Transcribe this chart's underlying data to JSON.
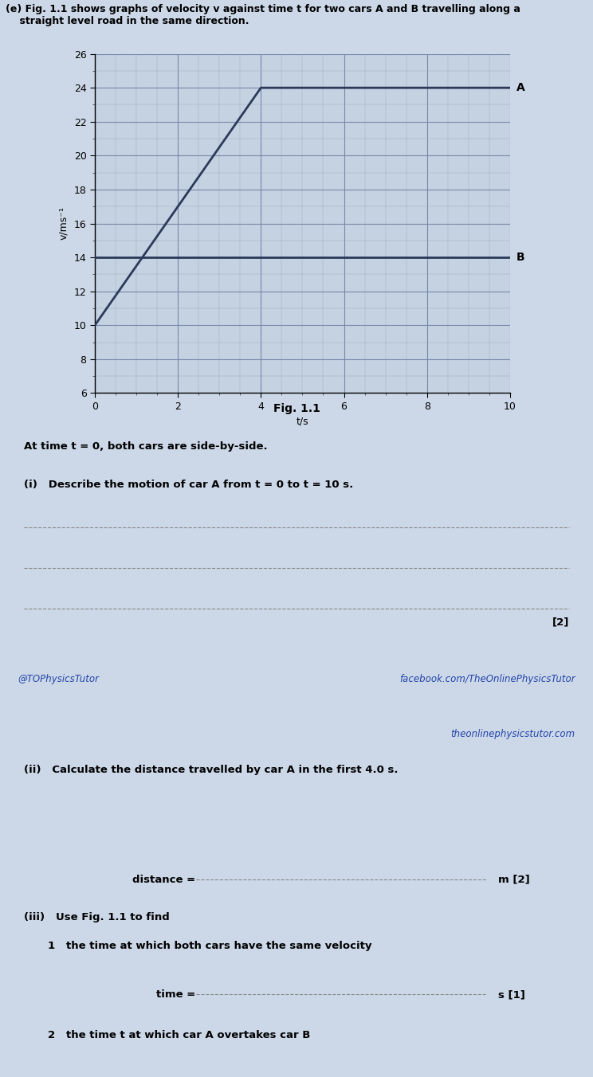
{
  "header_text_line1": "(e) Fig. 1.1 shows graphs of velocity v against time t for two cars A and B travelling along a",
  "header_text_line2": "    straight level road in the same direction.",
  "fig_label": "Fig. 1.1",
  "ylabel": "v/ms⁻¹",
  "xlabel": "t/s",
  "ylim": [
    6,
    26
  ],
  "xlim": [
    0,
    10
  ],
  "yticks": [
    6,
    8,
    10,
    12,
    14,
    16,
    18,
    20,
    22,
    24,
    26
  ],
  "xticks": [
    0,
    2,
    4,
    6,
    8,
    10
  ],
  "car_A_t": [
    0,
    4,
    10
  ],
  "car_A_v": [
    10,
    24,
    24
  ],
  "car_B_t": [
    0,
    10
  ],
  "car_B_v": [
    14,
    14
  ],
  "label_A": "A",
  "label_B": "B",
  "line_color": "#2b3a5a",
  "grid_major_color": "#7788aa",
  "grid_minor_color": "#99aabb",
  "plot_bg_color": "#c5d2e2",
  "page_bg_color": "#ccd8e8",
  "section1_bg_color": "#d4dff0",
  "section2_bg_color": "#dde8f5",
  "divider_color": "#aabbd0",
  "at_time_text": "At time t = 0, both cars are side-by-side.",
  "q1_label": "(i)",
  "q1_text": "Describe the motion of car A from t = 0 to t = 10 s.",
  "q1_marks": "[2]",
  "q2_label": "(ii)",
  "q2_text": "Calculate the distance travelled by car A in the first 4.0 s.",
  "q2_answer_label": "distance =",
  "q2_answer_unit": "m [2]",
  "q3_label": "(iii)",
  "q3_text": "Use Fig. 1.1 to find",
  "q3_sub1": "1   the time at which both cars have the same velocity",
  "q3_sub1_answer": "time =",
  "q3_sub1_unit": "s [1]",
  "q3_sub2": "2   the time t at which car A overtakes car B",
  "footer_left": "@TOPhysicsTutor",
  "footer_right": "facebook.com/TheOnlinePhysicsTutor",
  "footer2_right": "theonlinephysicstutor.com",
  "line_width": 2.0,
  "font_size_header": 9.0,
  "font_size_labels": 9,
  "font_size_axis": 9,
  "font_size_question": 9.5,
  "font_size_footer": 8.5
}
